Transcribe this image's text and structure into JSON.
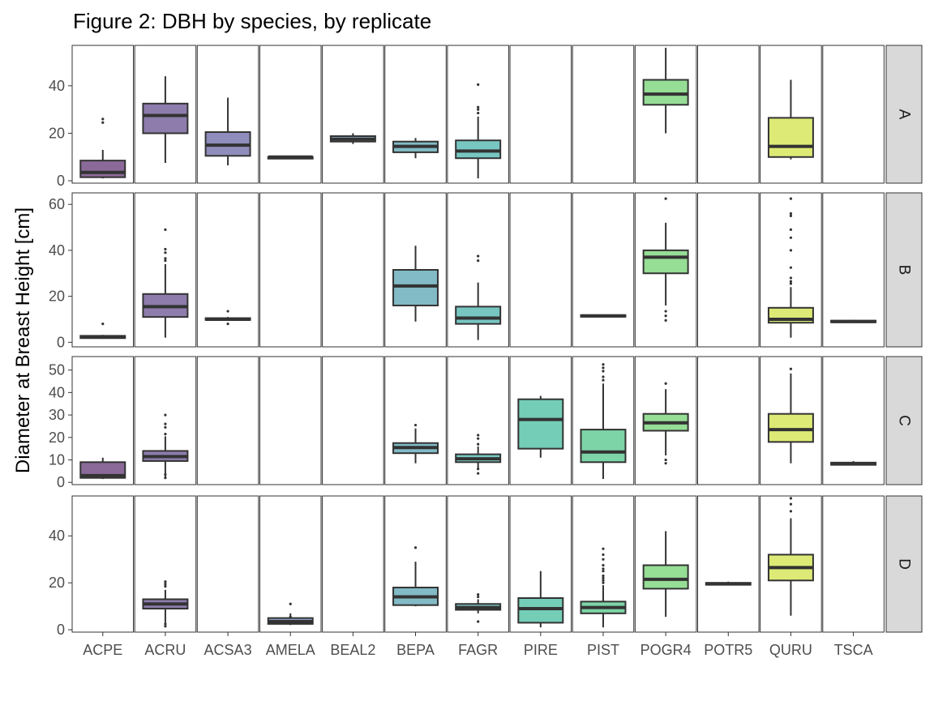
{
  "chart_data": {
    "type": "boxplot",
    "title": "Figure 2:  DBH by species, by replicate",
    "ylabel": "Diameter at Breast Height [cm]",
    "xlabel": "",
    "grid": false,
    "facet_rows": [
      "A",
      "B",
      "C",
      "D"
    ],
    "species": [
      "ACPE",
      "ACRU",
      "ACSA3",
      "AMELA",
      "BEAL2",
      "BEPA",
      "FAGR",
      "PIRE",
      "PIST",
      "POGR4",
      "POTR5",
      "QURU",
      "TSCA"
    ],
    "species_colors": [
      "#8B6A9A",
      "#8E7CAC",
      "#8E8DBB",
      "#8F9EC4",
      "#8AAFC6",
      "#82BBC6",
      "#78C6C2",
      "#74CDB7",
      "#7CD4A7",
      "#96DD96",
      "#B1E28B",
      "#DDEA76",
      "#E8EC6D"
    ],
    "panels": [
      {
        "row": "A",
        "ylim": [
          -1,
          57
        ],
        "yticks": [
          0,
          20,
          40
        ],
        "boxes": [
          {
            "species": "ACPE",
            "min": 1,
            "q1": 1.5,
            "median": 3.5,
            "q3": 8.5,
            "max": 13,
            "outliers": [
              24.5,
              26
            ]
          },
          {
            "species": "ACRU",
            "min": 7.5,
            "q1": 20,
            "median": 27.5,
            "q3": 32.5,
            "max": 44,
            "outliers": []
          },
          {
            "species": "ACSA3",
            "min": 6.5,
            "q1": 10.5,
            "median": 15,
            "q3": 20.5,
            "max": 35,
            "outliers": []
          },
          {
            "species": "AMELA",
            "min": 10,
            "q1": 10,
            "median": 10,
            "q3": 10,
            "max": 10,
            "outliers": []
          },
          {
            "species": "BEAL2",
            "min": 15.5,
            "q1": 16.5,
            "median": 17.5,
            "q3": 18.8,
            "max": 20,
            "outliers": []
          },
          {
            "species": "BEPA",
            "min": 9.5,
            "q1": 12,
            "median": 14.5,
            "q3": 16.5,
            "max": 18,
            "outliers": []
          },
          {
            "species": "FAGR",
            "min": 1,
            "q1": 9.5,
            "median": 12.5,
            "q3": 17,
            "max": 27,
            "outliers": [
              28.5,
              30,
              31,
              40.5
            ]
          },
          {
            "species": "POGR4",
            "min": 20,
            "q1": 32,
            "median": 36.5,
            "q3": 42.5,
            "max": 56,
            "outliers": []
          },
          {
            "species": "QURU",
            "min": 9,
            "q1": 10,
            "median": 14.5,
            "q3": 26.5,
            "max": 42.5,
            "outliers": []
          }
        ]
      },
      {
        "row": "B",
        "ylim": [
          -2,
          65
        ],
        "yticks": [
          0,
          20,
          40,
          60
        ],
        "boxes": [
          {
            "species": "ACPE",
            "min": 1.5,
            "q1": 1.8,
            "median": 2.3,
            "q3": 2.8,
            "max": 3.2,
            "outliers": [
              8
            ]
          },
          {
            "species": "ACRU",
            "min": 2,
            "q1": 11,
            "median": 15.5,
            "q3": 21,
            "max": 34,
            "outliers": [
              35.5,
              36.5,
              39,
              40.5,
              49
            ]
          },
          {
            "species": "ACSA3",
            "min": 9.5,
            "q1": 9.7,
            "median": 10,
            "q3": 10.5,
            "max": 11,
            "outliers": [
              8,
              13.5
            ]
          },
          {
            "species": "BEPA",
            "min": 9,
            "q1": 16,
            "median": 24.5,
            "q3": 31.5,
            "max": 42,
            "outliers": []
          },
          {
            "species": "FAGR",
            "min": 1,
            "q1": 8,
            "median": 10.5,
            "q3": 15.5,
            "max": 26,
            "outliers": [
              35.5,
              37.5
            ]
          },
          {
            "species": "PIST",
            "min": 11,
            "q1": 11.2,
            "median": 11.5,
            "q3": 11.8,
            "max": 12,
            "outliers": []
          },
          {
            "species": "POGR4",
            "min": 16,
            "q1": 30,
            "median": 37,
            "q3": 40,
            "max": 52,
            "outliers": [
              9.5,
              11.5,
              13.5,
              62.5
            ]
          },
          {
            "species": "QURU",
            "min": 2,
            "q1": 8.5,
            "median": 10,
            "q3": 15,
            "max": 24,
            "outliers": [
              25.5,
              26.5,
              28,
              32.5,
              40,
              45.5,
              49,
              55,
              56,
              62.5
            ]
          },
          {
            "species": "TSCA",
            "min": 8.5,
            "q1": 8.7,
            "median": 9,
            "q3": 9.4,
            "max": 9.8,
            "outliers": []
          }
        ]
      },
      {
        "row": "C",
        "ylim": [
          -1,
          56
        ],
        "yticks": [
          0,
          10,
          20,
          30,
          40,
          50
        ],
        "boxes": [
          {
            "species": "ACPE",
            "min": 1.5,
            "q1": 2,
            "median": 3,
            "q3": 9,
            "max": 11,
            "outliers": []
          },
          {
            "species": "ACRU",
            "min": 2,
            "q1": 9.5,
            "median": 11.5,
            "q3": 14,
            "max": 20.5,
            "outliers": [
              2,
              3.5,
              21.5,
              24.5,
              26,
              30
            ]
          },
          {
            "species": "BEPA",
            "min": 8.5,
            "q1": 13,
            "median": 15.5,
            "q3": 17.5,
            "max": 24,
            "outliers": [
              25.5
            ]
          },
          {
            "species": "FAGR",
            "min": 6,
            "q1": 9,
            "median": 10.5,
            "q3": 12.5,
            "max": 16,
            "outliers": [
              4,
              6,
              17,
              19.5,
              21
            ]
          },
          {
            "species": "PIRE",
            "min": 11,
            "q1": 15,
            "median": 28,
            "q3": 37,
            "max": 38.5,
            "outliers": []
          },
          {
            "species": "PIST",
            "min": 1.5,
            "q1": 9,
            "median": 13.5,
            "q3": 23.5,
            "max": 44,
            "outliers": [
              45.5,
              47,
              49.5,
              51,
              52.5
            ]
          },
          {
            "species": "POGR4",
            "min": 12,
            "q1": 23,
            "median": 26.5,
            "q3": 30.5,
            "max": 41.5,
            "outliers": [
              8.5,
              10,
              44
            ]
          },
          {
            "species": "QURU",
            "min": 8.5,
            "q1": 18,
            "median": 23.5,
            "q3": 30.5,
            "max": 48.5,
            "outliers": [
              50.5
            ]
          },
          {
            "species": "TSCA",
            "min": 7.5,
            "q1": 7.8,
            "median": 8.2,
            "q3": 8.8,
            "max": 9.5,
            "outliers": []
          }
        ]
      },
      {
        "row": "D",
        "ylim": [
          -1,
          57
        ],
        "yticks": [
          0,
          20,
          40
        ],
        "boxes": [
          {
            "species": "ACRU",
            "min": 3,
            "q1": 9,
            "median": 11,
            "q3": 13,
            "max": 17,
            "outliers": [
              1.5,
              2.5,
              18.5,
              19.5,
              20.5
            ]
          },
          {
            "species": "AMELA",
            "min": 2,
            "q1": 2.5,
            "median": 3.5,
            "q3": 5,
            "max": 7,
            "outliers": [
              5.5,
              11
            ]
          },
          {
            "species": "BEPA",
            "min": 10,
            "q1": 10.5,
            "median": 14,
            "q3": 18,
            "max": 29,
            "outliers": [
              35
            ]
          },
          {
            "species": "FAGR",
            "min": 7,
            "q1": 8.5,
            "median": 9.5,
            "q3": 11,
            "max": 13,
            "outliers": [
              3.5,
              14,
              15
            ]
          },
          {
            "species": "PIRE",
            "min": 1,
            "q1": 3,
            "median": 9,
            "q3": 13.5,
            "max": 25,
            "outliers": []
          },
          {
            "species": "PIST",
            "min": 1,
            "q1": 7,
            "median": 9.5,
            "q3": 12,
            "max": 19,
            "outliers": [
              20,
              21,
              22,
              23,
              25,
              26,
              27.5,
              30,
              32,
              34.5
            ]
          },
          {
            "species": "POGR4",
            "min": 5.5,
            "q1": 17.5,
            "median": 21.5,
            "q3": 27.5,
            "max": 42,
            "outliers": []
          },
          {
            "species": "POTR5",
            "min": 19,
            "q1": 19.2,
            "median": 19.5,
            "q3": 20,
            "max": 20.5,
            "outliers": []
          },
          {
            "species": "QURU",
            "min": 6,
            "q1": 21,
            "median": 26.5,
            "q3": 32,
            "max": 47.5,
            "outliers": [
              50.5,
              53.5,
              56
            ]
          }
        ]
      }
    ]
  }
}
